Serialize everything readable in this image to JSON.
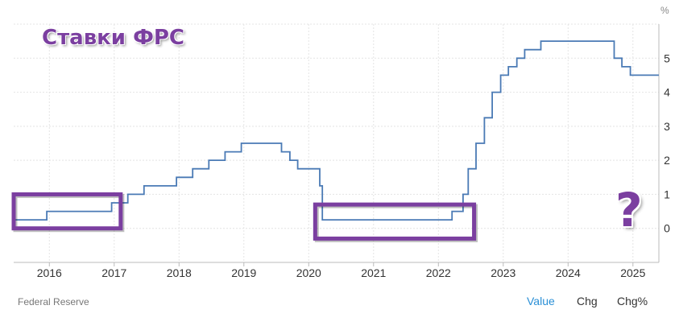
{
  "overlay": {
    "title": "Ставки ФРС",
    "question_mark": "?",
    "highlight_color": "#7b3fa0"
  },
  "source": "Federal Reserve",
  "tabs": [
    {
      "label": "Value",
      "active": true
    },
    {
      "label": "Chg",
      "active": false
    },
    {
      "label": "Chg%",
      "active": false
    }
  ],
  "chart_data": {
    "type": "line",
    "step": true,
    "line_color": "#4a7ab5",
    "grid": true,
    "y_unit": "%",
    "y_axis_side": "right",
    "xlim": [
      2015.45,
      2025.4
    ],
    "ylim": [
      -1.0,
      6.0
    ],
    "x_ticks": [
      "2016",
      "2017",
      "2018",
      "2019",
      "2020",
      "2021",
      "2022",
      "2023",
      "2024",
      "2025"
    ],
    "y_ticks": [
      "0",
      "1",
      "2",
      "3",
      "4",
      "5"
    ],
    "series": [
      {
        "x": [
          2015.45,
          2015.96,
          2016.96,
          2017.21,
          2017.46,
          2017.96,
          2018.21,
          2018.46,
          2018.71,
          2018.96,
          2019.58,
          2019.71,
          2019.83,
          2020.17,
          2020.21,
          2022.21,
          2022.38,
          2022.46,
          2022.58,
          2022.71,
          2022.83,
          2022.96,
          2023.08,
          2023.21,
          2023.33,
          2023.58,
          2024.71,
          2024.83,
          2024.96,
          2025.4
        ],
        "y": [
          0.25,
          0.5,
          0.75,
          1.0,
          1.25,
          1.5,
          1.75,
          2.0,
          2.25,
          2.5,
          2.25,
          2.0,
          1.75,
          1.25,
          0.25,
          0.5,
          1.0,
          1.75,
          2.5,
          3.25,
          4.0,
          4.5,
          4.75,
          5.0,
          5.25,
          5.5,
          5.0,
          4.75,
          4.5,
          4.5
        ]
      }
    ],
    "highlights": [
      {
        "x": [
          2015.45,
          2017.1
        ],
        "y": [
          0.0,
          1.0
        ]
      },
      {
        "x": [
          2020.1,
          2022.55
        ],
        "y": [
          -0.3,
          0.7
        ]
      }
    ]
  }
}
